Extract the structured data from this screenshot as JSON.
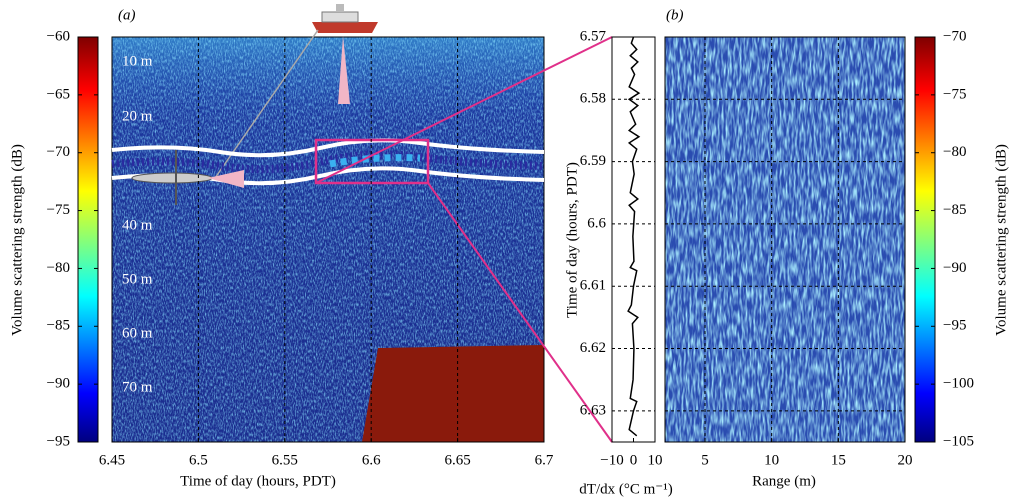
{
  "chart_data": [
    {
      "type": "heatmap",
      "panel_label": "(a)",
      "ylabel": "Volume scattering strength (dB)",
      "xlabel": "Time of day (hours, PDT)",
      "xlim": [
        6.45,
        6.7
      ],
      "xticks": [
        6.45,
        6.5,
        6.55,
        6.6,
        6.65,
        6.7
      ],
      "clim": [
        -95,
        -60
      ],
      "cticks": [
        {
          "value": -60,
          "label": "−60"
        },
        {
          "value": -65,
          "label": "−65"
        },
        {
          "value": -70,
          "label": "−70"
        },
        {
          "value": -75,
          "label": "−75"
        },
        {
          "value": -80,
          "label": "−80"
        },
        {
          "value": -85,
          "label": "−85"
        },
        {
          "value": -90,
          "label": "−90"
        },
        {
          "value": -95,
          "label": "−95"
        }
      ],
      "depth_labels": [
        "10 m",
        "20 m",
        "40 m",
        "50 m",
        "60 m",
        "70 m"
      ],
      "grid": true
    },
    {
      "type": "line",
      "ylabel": "Time of day (hours, PDT)",
      "xlabel": "dT/dx (°C m⁻¹)",
      "color": "#000000",
      "xlim": [
        -10,
        10
      ],
      "xticks": [
        {
          "value": -10,
          "label": "−10"
        },
        0,
        10
      ],
      "ylim": [
        6.57,
        6.635
      ],
      "yticks": [
        6.57,
        6.58,
        6.59,
        6.6,
        6.61,
        6.62,
        6.63
      ],
      "times": [
        6.57,
        6.571,
        6.572,
        6.573,
        6.574,
        6.575,
        6.576,
        6.578,
        6.579,
        6.58,
        6.581,
        6.582,
        6.584,
        6.585,
        6.586,
        6.587,
        6.588,
        6.59,
        6.592,
        6.595,
        6.596,
        6.597,
        6.598,
        6.602,
        6.606,
        6.607,
        6.6075,
        6.61,
        6.613,
        6.614,
        6.615,
        6.616,
        6.62,
        6.625,
        6.628,
        6.6285,
        6.63,
        6.633,
        6.634
      ],
      "values": [
        0,
        -1,
        1.5,
        -1.5,
        2,
        -1,
        0.5,
        -2,
        2.5,
        -2,
        2,
        -1.5,
        1,
        -2,
        2.5,
        -2,
        1.5,
        -0.5,
        0.3,
        -1.5,
        2,
        -2,
        0.5,
        -0.3,
        0.2,
        -1.5,
        1.5,
        0,
        -1,
        -2.5,
        2,
        -0.5,
        0.2,
        -0.2,
        -1.5,
        1.5,
        0,
        -2,
        1.5
      ],
      "grid": true
    },
    {
      "type": "heatmap",
      "panel_label": "(b)",
      "ylabel": "Volume scattering strength (dB)",
      "xlabel": "Range (m)",
      "xlim": [
        2,
        20
      ],
      "xticks": [
        5,
        10,
        15,
        20
      ],
      "clim": [
        -105,
        -70
      ],
      "cticks": [
        {
          "value": -70,
          "label": "−70"
        },
        {
          "value": -75,
          "label": "−75"
        },
        {
          "value": -80,
          "label": "−80"
        },
        {
          "value": -85,
          "label": "−85"
        },
        {
          "value": -90,
          "label": "−90"
        },
        {
          "value": -95,
          "label": "−95"
        },
        {
          "value": -100,
          "label": "−100"
        },
        {
          "value": -105,
          "label": "−105"
        }
      ],
      "grid": true
    }
  ]
}
